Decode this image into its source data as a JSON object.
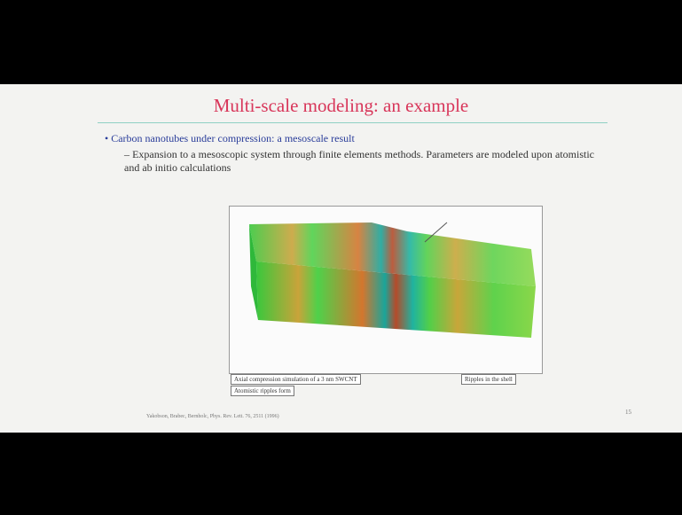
{
  "slide": {
    "title": "Multi-scale modeling: an example",
    "bullet": "Carbon nanotubes under compression: a mesoscale result",
    "sub_bullet": "– Expansion to a mesoscopic system through finite elements methods. Parameters are modeled upon atomistic and ab initio calculations",
    "captions": [
      "Axial compression simulation of a 3 nm SWCNT",
      "Ripples in the shell",
      "Atomistic ripples form"
    ],
    "footer": "Yakobson, Brabec, Bernholc, Phys. Rev. Lett. 76, 2511 (1996)",
    "page_number": "15"
  }
}
